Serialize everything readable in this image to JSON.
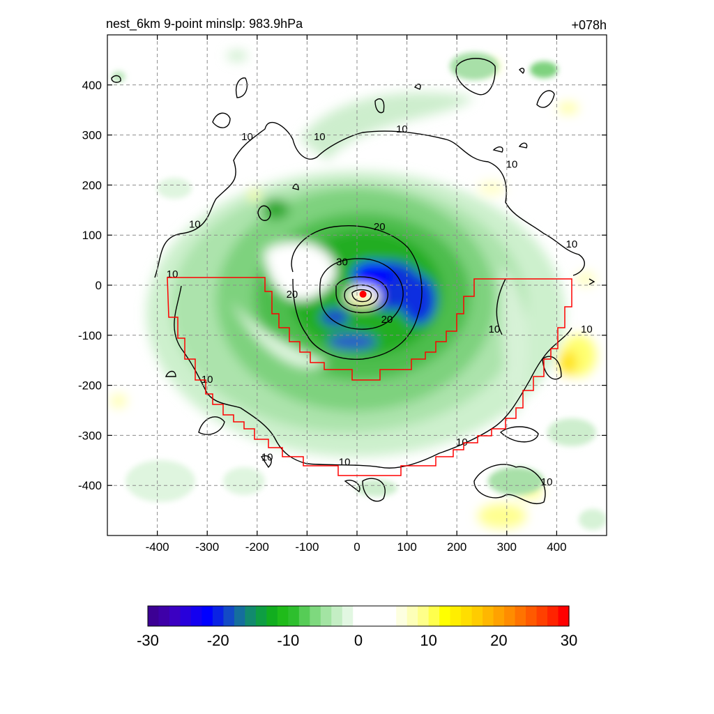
{
  "chart_data": {
    "type": "heatmap",
    "title_left": "nest_6km  9-point minslp: 983.9hPa",
    "title_right": "+078h",
    "xlim": [
      -500,
      500
    ],
    "ylim": [
      -500,
      500
    ],
    "x_ticks": [
      -400,
      -300,
      -200,
      -100,
      0,
      100,
      200,
      300,
      400
    ],
    "y_ticks": [
      400,
      300,
      200,
      100,
      0,
      -100,
      -200,
      -300,
      -400
    ],
    "grid": "dashed",
    "center_marker": {
      "x": 12,
      "y": -18,
      "color": "#ff0000"
    },
    "contour_labels": [
      {
        "text": "10",
        "x": -220,
        "y": 290
      },
      {
        "text": "10",
        "x": -75,
        "y": 290
      },
      {
        "text": "10",
        "x": 90,
        "y": 305
      },
      {
        "text": "10",
        "x": 310,
        "y": 235
      },
      {
        "text": "10",
        "x": -325,
        "y": 115
      },
      {
        "text": "10",
        "x": -370,
        "y": 15
      },
      {
        "text": "10",
        "x": 430,
        "y": 75
      },
      {
        "text": "10",
        "x": 275,
        "y": -95
      },
      {
        "text": "10",
        "x": 460,
        "y": -95
      },
      {
        "text": "10",
        "x": -300,
        "y": -195
      },
      {
        "text": "10",
        "x": -180,
        "y": -350
      },
      {
        "text": "10",
        "x": -25,
        "y": -360
      },
      {
        "text": "10",
        "x": 210,
        "y": -320
      },
      {
        "text": "10",
        "x": 380,
        "y": -400
      },
      {
        "text": "20",
        "x": 45,
        "y": 110
      },
      {
        "text": "20",
        "x": 60,
        "y": -75
      },
      {
        "text": "20",
        "x": -130,
        "y": -25
      },
      {
        "text": "30",
        "x": -30,
        "y": 40
      }
    ],
    "colorbar": {
      "min": -30,
      "max": 30,
      "tick_labels": [
        "-30",
        "-20",
        "-10",
        "0",
        "10",
        "20",
        "30"
      ],
      "colors": [
        "#3c0094",
        "#3e00a8",
        "#3b00c2",
        "#2800db",
        "#1400f0",
        "#0000ff",
        "#0a22e4",
        "#134ac6",
        "#156e9d",
        "#128a6e",
        "#0e9e43",
        "#11ad1f",
        "#1fbb1a",
        "#2ebf2e",
        "#56cc56",
        "#7ed97e",
        "#a3e4a3",
        "#c4eec4",
        "#e2f7e2",
        "#ffffff",
        "#ffffff",
        "#ffffff",
        "#ffffff",
        "#fdffe0",
        "#fdffb8",
        "#feff8a",
        "#ffff4d",
        "#ffff00",
        "#ffee00",
        "#ffde00",
        "#ffcc00",
        "#ffb700",
        "#ffa200",
        "#ff8c00",
        "#ff7300",
        "#ff5a00",
        "#ff4000",
        "#ff2400",
        "#ff0000"
      ]
    },
    "domain_outline_color": "#ff0000"
  }
}
